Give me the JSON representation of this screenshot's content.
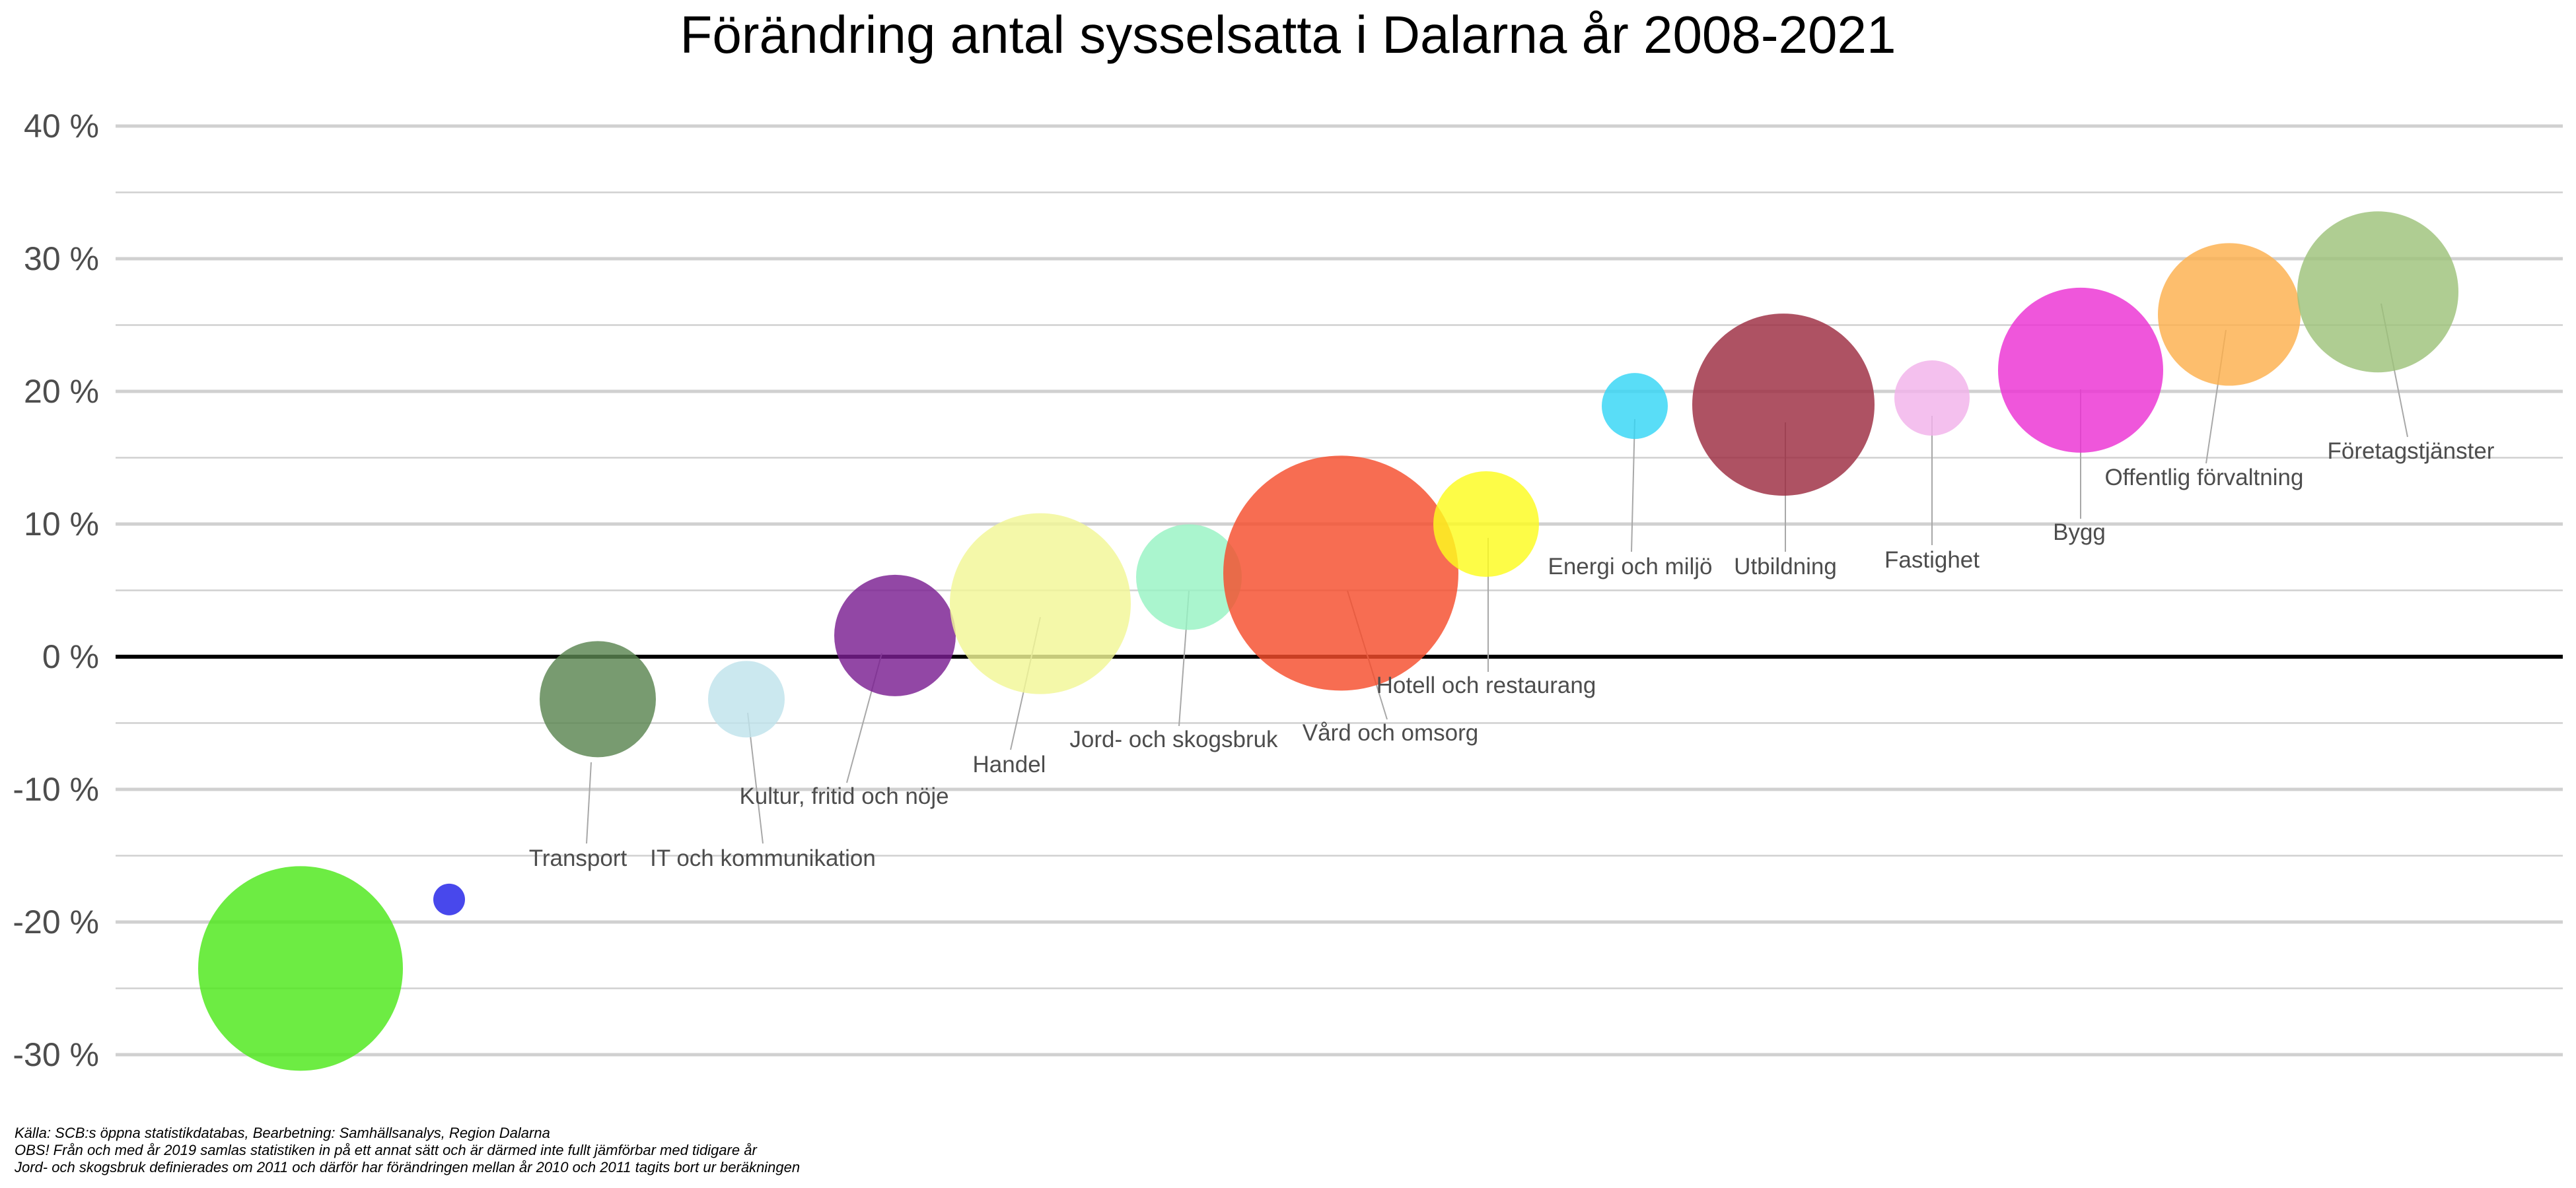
{
  "chart_data": {
    "type": "scatter",
    "title": "Förändring antal sysselsatta i Dalarna år 2008-2021",
    "xlabel": "",
    "ylabel": "",
    "ylim": [
      -33,
      40
    ],
    "y_ticks": [
      40,
      30,
      20,
      10,
      0,
      -10,
      -20,
      -30
    ],
    "y_tick_labels": [
      "40 %",
      "30 %",
      "20 %",
      "10 %",
      "0 %",
      "-10 %",
      "-20 %",
      "-30 %"
    ],
    "legend": "none",
    "grid": true,
    "points": [
      {
        "label": "",
        "y": -23.5,
        "size": 155,
        "color": "#4de81a"
      },
      {
        "label": "",
        "y": -18.3,
        "size": 24,
        "color": "#2020e8"
      },
      {
        "label": "Transport",
        "y": -3.2,
        "size": 88,
        "color": "#5a8550"
      },
      {
        "label": "IT och kommunikation",
        "y": -3.2,
        "size": 58,
        "color": "#bfe3ec"
      },
      {
        "label": "Kultur, fritid och nöje",
        "y": 1.6,
        "size": 92,
        "color": "#7a1f91"
      },
      {
        "label": "Handel",
        "y": 4.0,
        "size": 137,
        "color": "#f1f796"
      },
      {
        "label": "Jord- och skogsbruk",
        "y": 6.0,
        "size": 80,
        "color": "#97f3c3"
      },
      {
        "label": "Vård och omsorg",
        "y": 6.3,
        "size": 178,
        "color": "#f54d2c"
      },
      {
        "label": "Hotell och restaurang",
        "y": 10.0,
        "size": 80,
        "color": "#fcfb1e"
      },
      {
        "label": "Energi och miljö",
        "y": 18.9,
        "size": 50,
        "color": "#34d5f5"
      },
      {
        "label": "Utbildning",
        "y": 19.0,
        "size": 138,
        "color": "#9c2c41"
      },
      {
        "label": "Fastighet",
        "y": 19.5,
        "size": 57,
        "color": "#f2b2ea"
      },
      {
        "label": "Bygg",
        "y": 21.6,
        "size": 125,
        "color": "#ec31d3"
      },
      {
        "label": "Offentlig förvaltning",
        "y": 25.8,
        "size": 108,
        "color": "#fdb04d"
      },
      {
        "label": "Företagstjänster",
        "y": 27.5,
        "size": 122,
        "color": "#9ec27a"
      }
    ]
  },
  "footnotes": [
    "Källa: SCB:s öppna statistikdatabas, Bearbetning: Samhällsanalys, Region Dalarna",
    "OBS! Från och med år 2019 samlas statistiken in på ett annat sätt och är därmed inte fullt jämförbar med tidigare år",
    "Jord- och skogsbruk definierades om 2011 och därför har förändringen mellan år 2010 och 2011 tagits bort ur beräkningen"
  ]
}
